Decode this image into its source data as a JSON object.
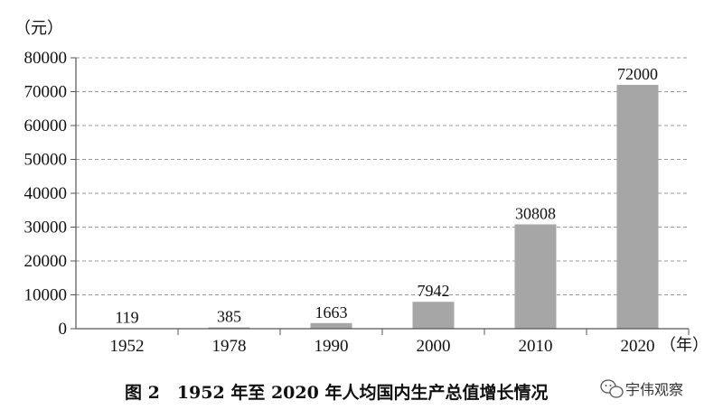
{
  "chart_data": {
    "type": "bar",
    "title": "图 2　1952 年至 2020 年人均国内生产总值增长情况",
    "categories": [
      "1952",
      "1978",
      "1990",
      "2000",
      "2010",
      "2020"
    ],
    "values": [
      119,
      385,
      1663,
      7942,
      30808,
      72000
    ],
    "data_labels": [
      "119",
      "385",
      "1663",
      "7942",
      "30808",
      "72000"
    ],
    "y_unit": "（元）",
    "x_unit": "（年）",
    "ylim": [
      0,
      80000
    ],
    "y_ticks": [
      0,
      10000,
      20000,
      30000,
      40000,
      50000,
      60000,
      70000,
      80000
    ],
    "y_tick_labels": [
      "0",
      "10000",
      "20000",
      "30000",
      "40000",
      "50000",
      "60000",
      "70000",
      "80000"
    ],
    "grid": "horizontal dashed",
    "bar_color": "#a6a6a6",
    "axis_color": "#555555"
  },
  "watermark": {
    "text": "宇伟观察"
  }
}
